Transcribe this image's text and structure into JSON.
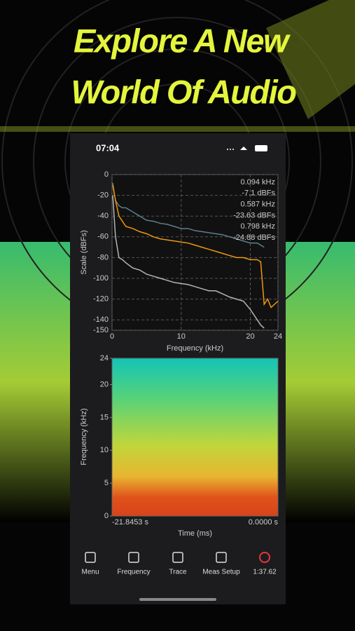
{
  "header": {
    "title_lines": [
      "Explore A New",
      "World Of Audio"
    ]
  },
  "status_bar": {
    "time": "07:04"
  },
  "chart_data": [
    {
      "type": "line",
      "ylabel": "Scale (dBFs)",
      "xlabel": "Frequency (kHz)",
      "xlim": [
        0,
        24
      ],
      "xticks": [
        0,
        10,
        20,
        24
      ],
      "ylim": [
        -150,
        0
      ],
      "yticks": [
        0,
        -20,
        -40,
        -60,
        -80,
        -100,
        -120,
        -140,
        -150
      ],
      "grid": true,
      "readouts": [
        "0.094 kHz",
        "-7.1 dBFs",
        "0.587 kHz",
        "-23.63 dBFs",
        "0.798 kHz",
        "-24.88 dBFs"
      ],
      "x": [
        0.1,
        0.5,
        1,
        1.5,
        2,
        3,
        4,
        5,
        6,
        7,
        8,
        9,
        10,
        11,
        12,
        13,
        14,
        15,
        16,
        17,
        18,
        19,
        20,
        21,
        21.5,
        22,
        22.5,
        23,
        23.5,
        24
      ],
      "series": [
        {
          "color": "#5f7f8c",
          "values": [
            -8,
            -25,
            -30,
            -32,
            -32,
            -36,
            -40,
            -44,
            -45,
            -47,
            -48,
            -50,
            -52,
            -52,
            -54,
            -55,
            -56,
            -57,
            -58,
            -60,
            -62,
            -64,
            -66,
            -66,
            -68,
            -70,
            null,
            null,
            null,
            null
          ]
        },
        {
          "color": "#f0960f",
          "values": [
            -10,
            -25,
            -40,
            -45,
            -50,
            -52,
            -55,
            -57,
            -60,
            -62,
            -63,
            -64,
            -65,
            -66,
            -68,
            -70,
            -72,
            -74,
            -76,
            -78,
            -80,
            -80,
            -82,
            -82,
            -84,
            -125,
            -120,
            -128,
            -125,
            -122
          ]
        },
        {
          "color": "#b5b5b5",
          "values": [
            -20,
            -60,
            -80,
            -82,
            -85,
            -90,
            -92,
            -96,
            -98,
            -100,
            -102,
            -104,
            -105,
            -106,
            -108,
            -110,
            -112,
            -112,
            -115,
            -118,
            -120,
            -122,
            -130,
            -140,
            -145,
            -148,
            null,
            null,
            null,
            null
          ]
        }
      ]
    },
    {
      "type": "spectrogram",
      "ylabel": "Frequency (kHz)",
      "xlabel": "Time (ms)",
      "ylim": [
        0,
        24
      ],
      "yticks": [
        0,
        5,
        10,
        15,
        20,
        24
      ],
      "time_labels": [
        "-21.8453 s",
        "0.0000 s"
      ]
    }
  ],
  "tab_bar": [
    "Menu",
    "Frequency",
    "Trace",
    "Meas Setup",
    "1:37.62"
  ]
}
